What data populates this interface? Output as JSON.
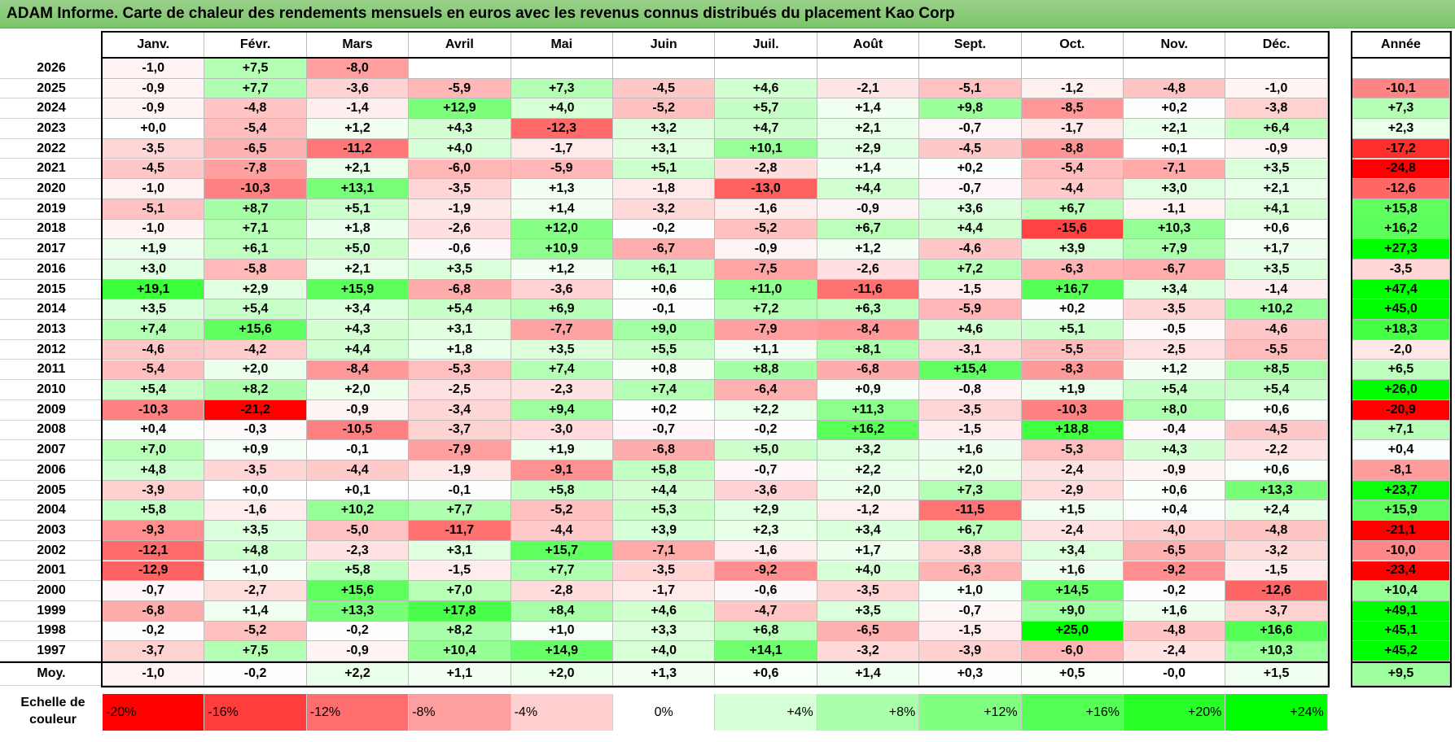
{
  "title": "ADAM Informe. Carte de chaleur des rendements mensuels en euros avec les revenus connus distribués du placement Kao Corp",
  "chart_data": {
    "type": "heatmap",
    "months": [
      "Janv.",
      "Févr.",
      "Mars",
      "Avril",
      "Mai",
      "Juin",
      "Juil.",
      "Août",
      "Sept.",
      "Oct.",
      "Nov.",
      "Déc."
    ],
    "annual_header": "Année",
    "rows": [
      {
        "year": "2026",
        "values": [
          "-1,0",
          "+7,5",
          "-8,0",
          "",
          "",
          "",
          "",
          "",
          "",
          "",
          "",
          ""
        ],
        "annual": ""
      },
      {
        "year": "2025",
        "values": [
          "-0,9",
          "+7,7",
          "-3,6",
          "-5,9",
          "+7,3",
          "-4,5",
          "+4,6",
          "-2,1",
          "-5,1",
          "-1,2",
          "-4,8",
          "-1,0"
        ],
        "annual": "-10,1"
      },
      {
        "year": "2024",
        "values": [
          "-0,9",
          "-4,8",
          "-1,4",
          "+12,9",
          "+4,0",
          "-5,2",
          "+5,7",
          "+1,4",
          "+9,8",
          "-8,5",
          "+0,2",
          "-3,8"
        ],
        "annual": "+7,3"
      },
      {
        "year": "2023",
        "values": [
          "+0,0",
          "-5,4",
          "+1,2",
          "+4,3",
          "-12,3",
          "+3,2",
          "+4,7",
          "+2,1",
          "-0,7",
          "-1,7",
          "+2,1",
          "+6,4"
        ],
        "annual": "+2,3"
      },
      {
        "year": "2022",
        "values": [
          "-3,5",
          "-6,5",
          "-11,2",
          "+4,0",
          "-1,7",
          "+3,1",
          "+10,1",
          "+2,9",
          "-4,5",
          "-8,8",
          "+0,1",
          "-0,9"
        ],
        "annual": "-17,2"
      },
      {
        "year": "2021",
        "values": [
          "-4,5",
          "-7,8",
          "+2,1",
          "-6,0",
          "-5,9",
          "+5,1",
          "-2,8",
          "+1,4",
          "+0,2",
          "-5,4",
          "-7,1",
          "+3,5"
        ],
        "annual": "-24,8"
      },
      {
        "year": "2020",
        "values": [
          "-1,0",
          "-10,3",
          "+13,1",
          "-3,5",
          "+1,3",
          "-1,8",
          "-13,0",
          "+4,4",
          "-0,7",
          "-4,4",
          "+3,0",
          "+2,1"
        ],
        "annual": "-12,6"
      },
      {
        "year": "2019",
        "values": [
          "-5,1",
          "+8,7",
          "+5,1",
          "-1,9",
          "+1,4",
          "-3,2",
          "-1,6",
          "-0,9",
          "+3,6",
          "+6,7",
          "-1,1",
          "+4,1"
        ],
        "annual": "+15,8"
      },
      {
        "year": "2018",
        "values": [
          "-1,0",
          "+7,1",
          "+1,8",
          "-2,6",
          "+12,0",
          "-0,2",
          "-5,2",
          "+6,7",
          "+4,4",
          "-15,6",
          "+10,3",
          "+0,6"
        ],
        "annual": "+16,2"
      },
      {
        "year": "2017",
        "values": [
          "+1,9",
          "+6,1",
          "+5,0",
          "-0,6",
          "+10,9",
          "-6,7",
          "-0,9",
          "+1,2",
          "-4,6",
          "+3,9",
          "+7,9",
          "+1,7"
        ],
        "annual": "+27,3"
      },
      {
        "year": "2016",
        "values": [
          "+3,0",
          "-5,8",
          "+2,1",
          "+3,5",
          "+1,2",
          "+6,1",
          "-7,5",
          "-2,6",
          "+7,2",
          "-6,3",
          "-6,7",
          "+3,5"
        ],
        "annual": "-3,5"
      },
      {
        "year": "2015",
        "values": [
          "+19,1",
          "+2,9",
          "+15,9",
          "-6,8",
          "-3,6",
          "+0,6",
          "+11,0",
          "-11,6",
          "-1,5",
          "+16,7",
          "+3,4",
          "-1,4"
        ],
        "annual": "+47,4"
      },
      {
        "year": "2014",
        "values": [
          "+3,5",
          "+5,4",
          "+3,4",
          "+5,4",
          "+6,9",
          "-0,1",
          "+7,2",
          "+6,3",
          "-5,9",
          "+0,2",
          "-3,5",
          "+10,2"
        ],
        "annual": "+45,0"
      },
      {
        "year": "2013",
        "values": [
          "+7,4",
          "+15,6",
          "+4,3",
          "+3,1",
          "-7,7",
          "+9,0",
          "-7,9",
          "-8,4",
          "+4,6",
          "+5,1",
          "-0,5",
          "-4,6"
        ],
        "annual": "+18,3"
      },
      {
        "year": "2012",
        "values": [
          "-4,6",
          "-4,2",
          "+4,4",
          "+1,8",
          "+3,5",
          "+5,5",
          "+1,1",
          "+8,1",
          "-3,1",
          "-5,5",
          "-2,5",
          "-5,5"
        ],
        "annual": "-2,0"
      },
      {
        "year": "2011",
        "values": [
          "-5,4",
          "+2,0",
          "-8,4",
          "-5,3",
          "+7,4",
          "+0,8",
          "+8,8",
          "-6,8",
          "+15,4",
          "-8,3",
          "+1,2",
          "+8,5"
        ],
        "annual": "+6,5"
      },
      {
        "year": "2010",
        "values": [
          "+5,4",
          "+8,2",
          "+2,0",
          "-2,5",
          "-2,3",
          "+7,4",
          "-6,4",
          "+0,9",
          "-0,8",
          "+1,9",
          "+5,4",
          "+5,4"
        ],
        "annual": "+26,0"
      },
      {
        "year": "2009",
        "values": [
          "-10,3",
          "-21,2",
          "-0,9",
          "-3,4",
          "+9,4",
          "+0,2",
          "+2,2",
          "+11,3",
          "-3,5",
          "-10,3",
          "+8,0",
          "+0,6"
        ],
        "annual": "-20,9"
      },
      {
        "year": "2008",
        "values": [
          "+0,4",
          "-0,3",
          "-10,5",
          "-3,7",
          "-3,0",
          "-0,7",
          "-0,2",
          "+16,2",
          "-1,5",
          "+18,8",
          "-0,4",
          "-4,5"
        ],
        "annual": "+7,1"
      },
      {
        "year": "2007",
        "values": [
          "+7,0",
          "+0,9",
          "-0,1",
          "-7,9",
          "+1,9",
          "-6,8",
          "+5,0",
          "+3,2",
          "+1,6",
          "-5,3",
          "+4,3",
          "-2,2"
        ],
        "annual": "+0,4"
      },
      {
        "year": "2006",
        "values": [
          "+4,8",
          "-3,5",
          "-4,4",
          "-1,9",
          "-9,1",
          "+5,8",
          "-0,7",
          "+2,2",
          "+2,0",
          "-2,4",
          "-0,9",
          "+0,6"
        ],
        "annual": "-8,1"
      },
      {
        "year": "2005",
        "values": [
          "-3,9",
          "+0,0",
          "+0,1",
          "-0,1",
          "+5,8",
          "+4,4",
          "-3,6",
          "+2,0",
          "+7,3",
          "-2,9",
          "+0,6",
          "+13,3"
        ],
        "annual": "+23,7"
      },
      {
        "year": "2004",
        "values": [
          "+5,8",
          "-1,6",
          "+10,2",
          "+7,7",
          "-5,2",
          "+5,3",
          "+2,9",
          "-1,2",
          "-11,5",
          "+1,5",
          "+0,4",
          "+2,4"
        ],
        "annual": "+15,9"
      },
      {
        "year": "2003",
        "values": [
          "-9,3",
          "+3,5",
          "-5,0",
          "-11,7",
          "-4,4",
          "+3,9",
          "+2,3",
          "+3,4",
          "+6,7",
          "-2,4",
          "-4,0",
          "-4,8"
        ],
        "annual": "-21,1"
      },
      {
        "year": "2002",
        "values": [
          "-12,1",
          "+4,8",
          "-2,3",
          "+3,1",
          "+15,7",
          "-7,1",
          "-1,6",
          "+1,7",
          "-3,8",
          "+3,4",
          "-6,5",
          "-3,2"
        ],
        "annual": "-10,0"
      },
      {
        "year": "2001",
        "values": [
          "-12,9",
          "+1,0",
          "+5,8",
          "-1,5",
          "+7,7",
          "-3,5",
          "-9,2",
          "+4,0",
          "-6,3",
          "+1,6",
          "-9,2",
          "-1,5"
        ],
        "annual": "-23,4"
      },
      {
        "year": "2000",
        "values": [
          "-0,7",
          "-2,7",
          "+15,6",
          "+7,0",
          "-2,8",
          "-1,7",
          "-0,6",
          "-3,5",
          "+1,0",
          "+14,5",
          "-0,2",
          "-12,6"
        ],
        "annual": "+10,4"
      },
      {
        "year": "1999",
        "values": [
          "-6,8",
          "+1,4",
          "+13,3",
          "+17,8",
          "+8,4",
          "+4,6",
          "-4,7",
          "+3,5",
          "-0,7",
          "+9,0",
          "+1,6",
          "-3,7"
        ],
        "annual": "+49,1"
      },
      {
        "year": "1998",
        "values": [
          "-0,2",
          "-5,2",
          "-0,2",
          "+8,2",
          "+1,0",
          "+3,3",
          "+6,8",
          "-6,5",
          "-1,5",
          "+25,0",
          "-4,8",
          "+16,6"
        ],
        "annual": "+45,1"
      },
      {
        "year": "1997",
        "values": [
          "-3,7",
          "+7,5",
          "-0,9",
          "+10,4",
          "+14,9",
          "+4,0",
          "+14,1",
          "-3,2",
          "-3,9",
          "-6,0",
          "-2,4",
          "+10,3"
        ],
        "annual": "+45,2"
      }
    ],
    "average": {
      "label": "Moy.",
      "values": [
        "-1,0",
        "-0,2",
        "+2,2",
        "+1,1",
        "+2,0",
        "+1,3",
        "+0,6",
        "+1,4",
        "+0,3",
        "+0,5",
        "-0,0",
        "+1,5"
      ],
      "annual": "+9,5"
    },
    "color_scale": {
      "label": "Echelle de couleur",
      "stops": [
        "-20%",
        "-16%",
        "-12%",
        "-8%",
        "-4%",
        "0%",
        "+4%",
        "+8%",
        "+12%",
        "+16%",
        "+20%",
        "+24%"
      ],
      "stop_values": [
        -20,
        -16,
        -12,
        -8,
        -4,
        0,
        4,
        8,
        12,
        16,
        20,
        24
      ],
      "negative_color": "#ff0000",
      "positive_color": "#00ff00",
      "neutral_color": "#ffffff"
    }
  }
}
